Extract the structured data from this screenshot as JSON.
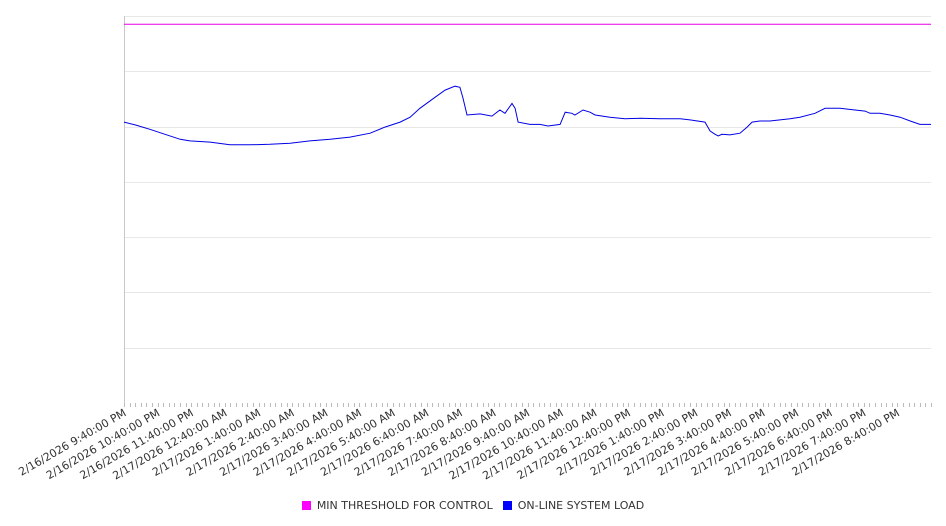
{
  "chart_data": {
    "type": "line",
    "title": "",
    "xlabel": "",
    "ylabel": "",
    "x_unit": "hours since 2/16/2026 9:40:00 PM",
    "xlim": [
      0,
      24
    ],
    "ylim": [
      0,
      7
    ],
    "y_gridlines": [
      1,
      2,
      3,
      4,
      5,
      6,
      7
    ],
    "grid": true,
    "legend_position": "bottom",
    "x_tick_labels": [
      "2/16/2026 9:40:00 PM",
      "2/16/2026 10:40:00 PM",
      "2/16/2026 11:40:00 PM",
      "2/17/2026 12:40:00 AM",
      "2/17/2026 1:40:00 AM",
      "2/17/2026 2:40:00 AM",
      "2/17/2026 3:40:00 AM",
      "2/17/2026 4:40:00 AM",
      "2/17/2026 5:40:00 AM",
      "2/17/2026 6:40:00 AM",
      "2/17/2026 7:40:00 AM",
      "2/17/2026 8:40:00 AM",
      "2/17/2026 9:40:00 AM",
      "2/17/2026 10:40:00 AM",
      "2/17/2026 11:40:00 AM",
      "2/17/2026 12:40:00 PM",
      "2/17/2026 1:40:00 PM",
      "2/17/2026 2:40:00 PM",
      "2/17/2026 3:40:00 PM",
      "2/17/2026 4:40:00 PM",
      "2/17/2026 5:40:00 PM",
      "2/17/2026 6:40:00 PM",
      "2/17/2026 7:40:00 PM",
      "2/17/2026 8:40:00 PM"
    ],
    "series": [
      {
        "name": "MIN THRESHOLD FOR CONTROL",
        "color": "#e600e6",
        "x": [
          0,
          24
        ],
        "y": [
          6.85,
          6.85
        ]
      },
      {
        "name": "ON-LINE SYSTEM LOAD",
        "color": "#0000e6",
        "x": [
          0,
          0.33,
          0.77,
          1.22,
          1.67,
          1.96,
          2.56,
          3.15,
          3.75,
          4.34,
          4.94,
          5.53,
          6.13,
          6.72,
          7.32,
          7.76,
          8.21,
          8.51,
          8.8,
          9.25,
          9.55,
          9.84,
          9.99,
          10.08,
          10.2,
          10.59,
          10.94,
          11.18,
          11.33,
          11.54,
          11.63,
          11.72,
          12.07,
          12.37,
          12.61,
          12.97,
          13.12,
          13.32,
          13.41,
          13.65,
          13.86,
          14.01,
          14.45,
          14.9,
          15.35,
          15.94,
          16.54,
          16.83,
          17.28,
          17.43,
          17.58,
          17.67,
          17.78,
          18.02,
          18.32,
          18.53,
          18.68,
          18.91,
          19.21,
          19.81,
          20.1,
          20.55,
          20.85,
          21.29,
          21.74,
          22.04,
          22.19,
          22.48,
          22.78,
          23.08,
          23.38,
          23.67,
          24
        ],
        "y": [
          5.08,
          5.03,
          4.95,
          4.86,
          4.77,
          4.74,
          4.72,
          4.67,
          4.67,
          4.68,
          4.7,
          4.74,
          4.77,
          4.81,
          4.88,
          4.99,
          5.08,
          5.17,
          5.33,
          5.53,
          5.66,
          5.73,
          5.71,
          5.52,
          5.21,
          5.23,
          5.19,
          5.3,
          5.24,
          5.42,
          5.33,
          5.08,
          5.04,
          5.04,
          5.01,
          5.04,
          5.26,
          5.24,
          5.21,
          5.3,
          5.26,
          5.21,
          5.17,
          5.14,
          5.15,
          5.14,
          5.14,
          5.12,
          5.08,
          4.92,
          4.86,
          4.83,
          4.86,
          4.85,
          4.88,
          4.99,
          5.08,
          5.1,
          5.1,
          5.14,
          5.17,
          5.24,
          5.33,
          5.33,
          5.3,
          5.28,
          5.24,
          5.24,
          5.21,
          5.17,
          5.1,
          5.04,
          5.04
        ]
      }
    ]
  }
}
